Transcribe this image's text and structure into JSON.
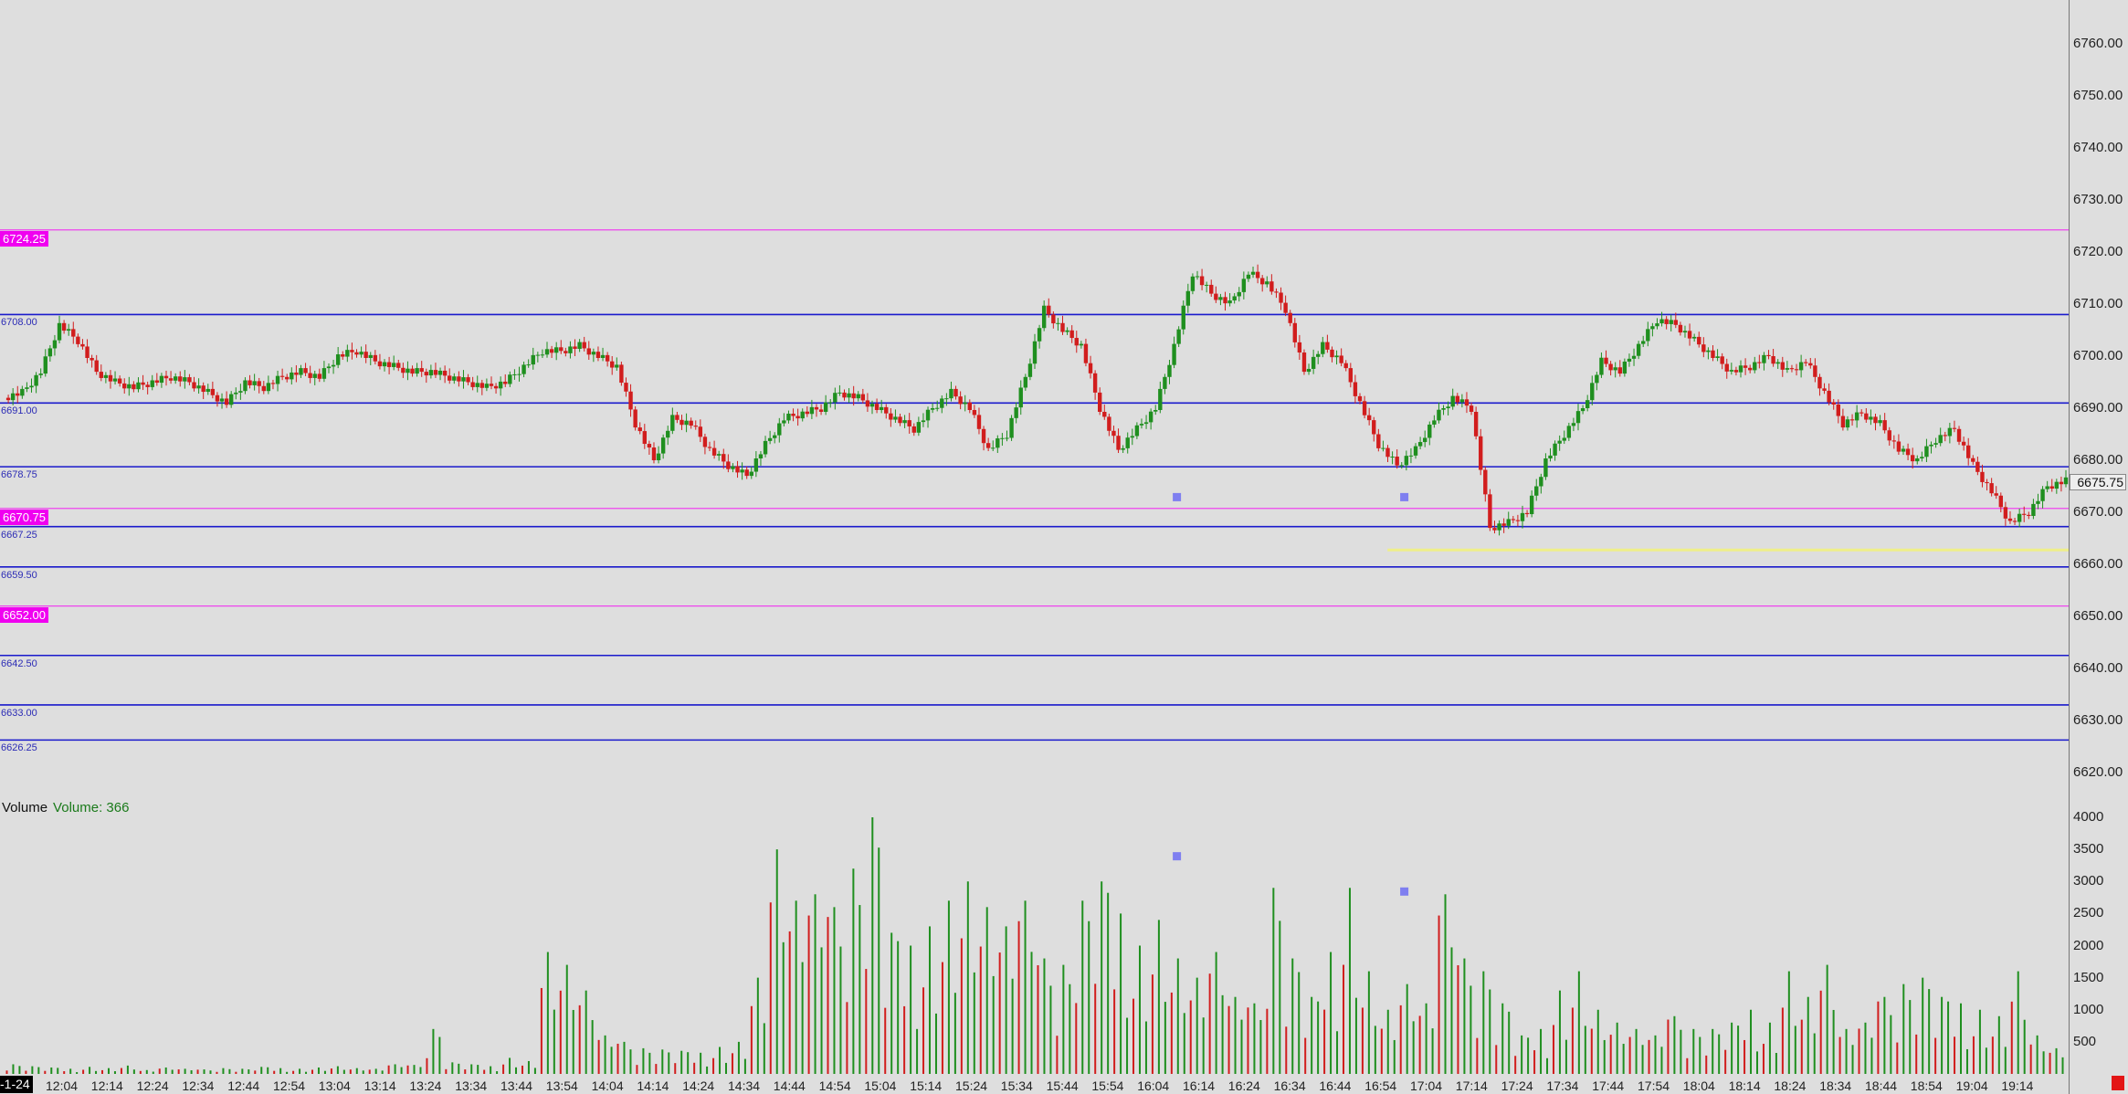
{
  "chart_data": {
    "type": "candlestick",
    "price_axis": {
      "ticks": [
        "6760.00",
        "6750.00",
        "6740.00",
        "6730.00",
        "6720.00",
        "6710.00",
        "6700.00",
        "6690.00",
        "6680.00",
        "6670.00",
        "6660.00",
        "6650.00",
        "6640.00",
        "6630.00",
        "6620.00"
      ],
      "range": [
        6615,
        6767
      ],
      "current_price": "6675.75"
    },
    "volume_axis": {
      "ticks": [
        "4000",
        "3500",
        "3000",
        "2500",
        "2000",
        "1500",
        "1000",
        "500"
      ],
      "range": [
        0,
        4000
      ]
    },
    "time_axis": {
      "ticks": [
        "12:04",
        "12:14",
        "12:24",
        "12:34",
        "12:44",
        "12:54",
        "13:04",
        "13:14",
        "13:24",
        "13:34",
        "13:44",
        "13:54",
        "14:04",
        "14:14",
        "14:24",
        "14:34",
        "14:44",
        "14:54",
        "15:04",
        "15:14",
        "15:24",
        "15:34",
        "15:44",
        "15:54",
        "16:04",
        "16:14",
        "16:24",
        "16:34",
        "16:44",
        "16:54",
        "17:04",
        "17:14",
        "17:24",
        "17:34",
        "17:44",
        "17:54",
        "18:04",
        "18:14",
        "18:24",
        "18:34",
        "18:44",
        "18:54",
        "19:04",
        "19:14"
      ],
      "corner_label": "-1-24"
    },
    "levels_blue": [
      {
        "label": "6708.00",
        "price": 6708.0
      },
      {
        "label": "6691.00",
        "price": 6691.0
      },
      {
        "label": "6678.75",
        "price": 6678.75
      },
      {
        "label": "6667.25",
        "price": 6667.25
      },
      {
        "label": "6659.50",
        "price": 6659.5
      },
      {
        "label": "6642.50",
        "price": 6642.5
      },
      {
        "label": "6633.00",
        "price": 6633.0
      },
      {
        "label": "6626.25",
        "price": 6626.25
      }
    ],
    "levels_pink": [
      {
        "label": "6724.25",
        "price": 6724.25
      },
      {
        "label": "6670.75",
        "price": 6670.75
      },
      {
        "label": "6652.00",
        "price": 6652.0
      }
    ],
    "yellow_level": {
      "price": 6662.5,
      "start_time_index": 28.9
    },
    "price_path": [
      6692,
      6693,
      6697,
      6706,
      6703,
      6697,
      6695,
      6694,
      6695,
      6696,
      6695,
      6693,
      6691,
      6695,
      6694,
      6696,
      6697,
      6696,
      6700,
      6701,
      6699,
      6698,
      6697,
      6697,
      6696,
      6695,
      6694,
      6695,
      6698,
      6701,
      6701,
      6702,
      6700,
      6698,
      6687,
      6680,
      6688,
      6687,
      6682,
      6679,
      6677,
      6683,
      6688,
      6689,
      6690,
      6693,
      6692,
      6690,
      6688,
      6686,
      6690,
      6693,
      6690,
      6682,
      6685,
      6696,
      6709,
      6705,
      6702,
      6690,
      6682,
      6686,
      6690,
      6702,
      6716,
      6712,
      6710,
      6716,
      6714,
      6709,
      6697,
      6702,
      6699,
      6691,
      6683,
      6679,
      6682,
      6688,
      6692,
      6690,
      6667,
      6668,
      6670,
      6680,
      6685,
      6690,
      6699,
      6697,
      6702,
      6707,
      6706,
      6703,
      6700,
      6697,
      6698,
      6700,
      6697,
      6699,
      6693,
      6687,
      6689,
      6687,
      6682,
      6680,
      6684,
      6686,
      6679,
      6674,
      6668,
      6670,
      6675,
      6676
    ],
    "markers": [
      {
        "time_index": 24.5,
        "price": 6673
      },
      {
        "time_index": 29.5,
        "price": 6673
      },
      {
        "time_index": 24.5,
        "volume": 3400
      },
      {
        "time_index": 29.5,
        "volume": 2850
      }
    ],
    "volume_title": "Volume",
    "volume_label": "Volume: 366",
    "volume_peaks": [
      150,
      120,
      100,
      80,
      110,
      90,
      130,
      60,
      100,
      80,
      70,
      90,
      80,
      110,
      90,
      80,
      100,
      120,
      90,
      80,
      150,
      140,
      700,
      180,
      150,
      120,
      250,
      200,
      1900,
      1700,
      1300,
      600,
      500,
      400,
      380,
      360,
      330,
      420,
      500,
      1500,
      3500,
      2700,
      2800,
      2600,
      3200,
      4000,
      2200,
      2000,
      2300,
      2700,
      3000,
      2600,
      2300,
      2700,
      1800,
      1700,
      2700,
      3000,
      2500,
      2000,
      2400,
      1800,
      1500,
      1900,
      1200,
      1100,
      2900,
      1800,
      1200,
      1900,
      2900,
      1600,
      1000,
      1400,
      1100,
      2800,
      1800,
      1600,
      1100,
      600,
      700,
      1300,
      1600,
      1000,
      800,
      700,
      600,
      900,
      700,
      700,
      800,
      1000,
      800,
      1600,
      1200,
      1700,
      700,
      800,
      1200,
      1400,
      1500,
      1200,
      1100,
      1000,
      900,
      1600,
      600,
      400
    ]
  },
  "colors": {
    "up": "#1f8f1f",
    "down": "#d11d1d",
    "blue_level": "#1a1acc",
    "pink_level": "#ee44ee",
    "yellow_level": "#f2f27a",
    "marker": "#7f7ff0"
  }
}
